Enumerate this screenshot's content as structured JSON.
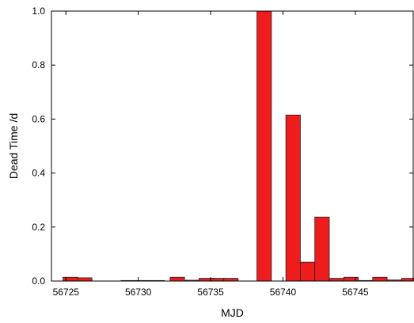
{
  "chart_data": {
    "type": "bar",
    "xlabel": "MJD",
    "ylabel": "Dead Time /d",
    "xlim": [
      56724,
      56749
    ],
    "ylim": [
      0.0,
      1.0
    ],
    "x_ticks": [
      56725,
      56730,
      56735,
      56740,
      56745
    ],
    "x_tick_labels": [
      "56725",
      "56730",
      "56735",
      "56740",
      "56745"
    ],
    "y_ticks": [
      0.0,
      0.2,
      0.4,
      0.6,
      0.8,
      1.0
    ],
    "y_tick_labels": [
      "0.0",
      "0.2",
      "0.4",
      "0.6",
      "0.8",
      "1.0"
    ],
    "bar_width": 1.0,
    "x": [
      56725.3,
      56726.3,
      56729.3,
      56730.3,
      56731.3,
      56732.7,
      56733.7,
      56734.7,
      56735.5,
      56736.4,
      56738.7,
      56740.7,
      56741.7,
      56742.7,
      56743.7,
      56744.7,
      56745.7,
      56746.7,
      56747.7,
      56748.7
    ],
    "values": [
      0.014,
      0.012,
      0.002,
      0.002,
      0.002,
      0.014,
      0.003,
      0.01,
      0.01,
      0.01,
      1.0,
      0.615,
      0.07,
      0.237,
      0.01,
      0.014,
      0.002,
      0.014,
      0.004,
      0.01
    ],
    "colors": {
      "bar_fill": "#ee1c1c",
      "bar_stroke": "#222222",
      "axis": "#000000"
    },
    "grid": false,
    "legend": "none"
  }
}
